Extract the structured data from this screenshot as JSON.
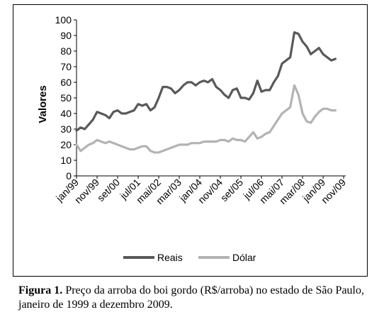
{
  "chart_data": {
    "type": "line",
    "ylabel": "Valores",
    "xlabel": "",
    "ylim": [
      0,
      100
    ],
    "yticks": [
      0,
      10,
      20,
      30,
      40,
      50,
      60,
      70,
      80,
      90,
      100
    ],
    "x_tick_labels": [
      "jan/99",
      "nov/99",
      "set/00",
      "jul/01",
      "mai/02",
      "mar/03",
      "jan/04",
      "nov/04",
      "set/05",
      "jul/06",
      "mai/07",
      "mar/08",
      "jan/09",
      "nov/09"
    ],
    "x_range": [
      "jan/1999",
      "dez/2009"
    ],
    "n_months": 132,
    "grid": false,
    "legend_position": "bottom",
    "series": [
      {
        "name": "Reais",
        "color": "#595959",
        "points": [
          [
            0,
            29
          ],
          [
            2,
            31
          ],
          [
            4,
            30
          ],
          [
            6,
            33
          ],
          [
            8,
            36
          ],
          [
            10,
            41
          ],
          [
            12,
            40
          ],
          [
            14,
            39
          ],
          [
            16,
            37
          ],
          [
            18,
            41
          ],
          [
            20,
            42
          ],
          [
            22,
            40
          ],
          [
            24,
            40
          ],
          [
            26,
            41
          ],
          [
            28,
            42
          ],
          [
            30,
            46
          ],
          [
            32,
            45
          ],
          [
            34,
            46
          ],
          [
            36,
            42
          ],
          [
            38,
            44
          ],
          [
            40,
            50
          ],
          [
            42,
            57
          ],
          [
            44,
            57
          ],
          [
            46,
            56
          ],
          [
            48,
            53
          ],
          [
            50,
            55
          ],
          [
            52,
            58
          ],
          [
            54,
            60
          ],
          [
            56,
            60
          ],
          [
            58,
            58
          ],
          [
            60,
            60
          ],
          [
            62,
            61
          ],
          [
            64,
            60
          ],
          [
            66,
            62
          ],
          [
            68,
            57
          ],
          [
            70,
            55
          ],
          [
            72,
            52
          ],
          [
            74,
            50
          ],
          [
            76,
            55
          ],
          [
            78,
            56
          ],
          [
            80,
            50
          ],
          [
            82,
            50
          ],
          [
            84,
            49
          ],
          [
            86,
            53
          ],
          [
            88,
            61
          ],
          [
            90,
            54
          ],
          [
            92,
            55
          ],
          [
            94,
            55
          ],
          [
            96,
            60
          ],
          [
            98,
            64
          ],
          [
            100,
            72
          ],
          [
            102,
            74
          ],
          [
            104,
            76
          ],
          [
            106,
            92
          ],
          [
            108,
            91
          ],
          [
            110,
            86
          ],
          [
            112,
            83
          ],
          [
            114,
            78
          ],
          [
            116,
            80
          ],
          [
            118,
            82
          ],
          [
            120,
            78
          ],
          [
            122,
            76
          ],
          [
            124,
            74
          ],
          [
            126,
            75
          ]
        ]
      },
      {
        "name": "Dólar",
        "color": "#b3b3b3",
        "points": [
          [
            0,
            20
          ],
          [
            2,
            16
          ],
          [
            4,
            18
          ],
          [
            6,
            20
          ],
          [
            8,
            21
          ],
          [
            10,
            23
          ],
          [
            12,
            22
          ],
          [
            14,
            21
          ],
          [
            16,
            22
          ],
          [
            18,
            21
          ],
          [
            20,
            20
          ],
          [
            22,
            19
          ],
          [
            24,
            18
          ],
          [
            26,
            17
          ],
          [
            28,
            17
          ],
          [
            30,
            18
          ],
          [
            32,
            19
          ],
          [
            34,
            19
          ],
          [
            36,
            16
          ],
          [
            38,
            15
          ],
          [
            40,
            15
          ],
          [
            42,
            16
          ],
          [
            44,
            17
          ],
          [
            46,
            18
          ],
          [
            48,
            19
          ],
          [
            50,
            20
          ],
          [
            52,
            20
          ],
          [
            54,
            20
          ],
          [
            56,
            21
          ],
          [
            58,
            21
          ],
          [
            60,
            21
          ],
          [
            62,
            22
          ],
          [
            64,
            22
          ],
          [
            66,
            22
          ],
          [
            68,
            22
          ],
          [
            70,
            23
          ],
          [
            72,
            23
          ],
          [
            74,
            22
          ],
          [
            76,
            24
          ],
          [
            78,
            23
          ],
          [
            80,
            23
          ],
          [
            82,
            22
          ],
          [
            84,
            25
          ],
          [
            86,
            28
          ],
          [
            88,
            24
          ],
          [
            90,
            25
          ],
          [
            92,
            27
          ],
          [
            94,
            28
          ],
          [
            96,
            32
          ],
          [
            98,
            36
          ],
          [
            100,
            40
          ],
          [
            102,
            42
          ],
          [
            104,
            44
          ],
          [
            106,
            58
          ],
          [
            108,
            52
          ],
          [
            110,
            40
          ],
          [
            112,
            35
          ],
          [
            114,
            34
          ],
          [
            116,
            38
          ],
          [
            118,
            41
          ],
          [
            120,
            43
          ],
          [
            122,
            43
          ],
          [
            124,
            42
          ],
          [
            126,
            42
          ]
        ]
      }
    ]
  },
  "caption": {
    "label": "Figura 1.",
    "text": "Preço da arroba do boi gordo (R$/arroba) no estado de São Paulo, janeiro de 1999 a dezembro 2009."
  }
}
